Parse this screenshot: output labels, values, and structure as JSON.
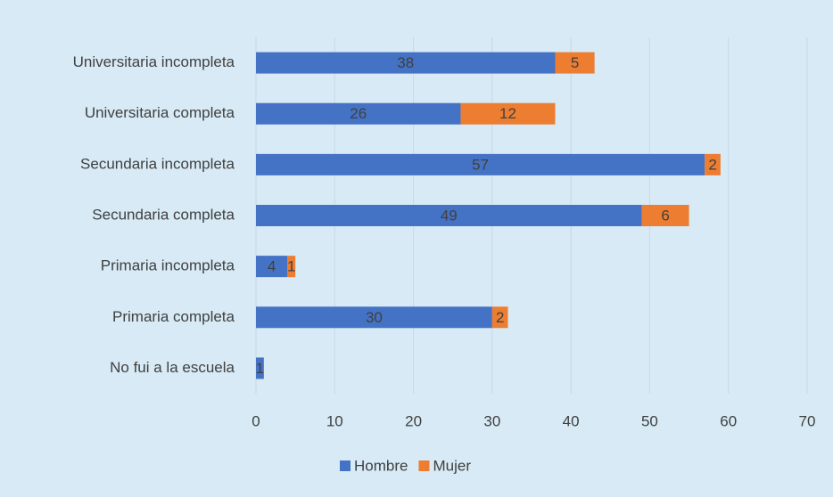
{
  "chart_data": {
    "type": "stacked-barh",
    "categories": [
      "Universitaria incompleta",
      "Universitaria completa",
      "Secundaria incompleta",
      "Secundaria completa",
      "Primaria incompleta",
      "Primaria completa",
      "No fui a la escuela"
    ],
    "series": [
      {
        "name": "Hombre",
        "color": "#4472c4",
        "values": [
          38,
          26,
          57,
          49,
          4,
          30,
          1
        ]
      },
      {
        "name": "Mujer",
        "color": "#ed7d31",
        "values": [
          5,
          12,
          2,
          6,
          1,
          2,
          0
        ]
      }
    ],
    "xlim": [
      0,
      70
    ],
    "xticks": [
      0,
      10,
      20,
      30,
      40,
      50,
      60,
      70
    ],
    "grid": true,
    "legend": "bottom"
  }
}
